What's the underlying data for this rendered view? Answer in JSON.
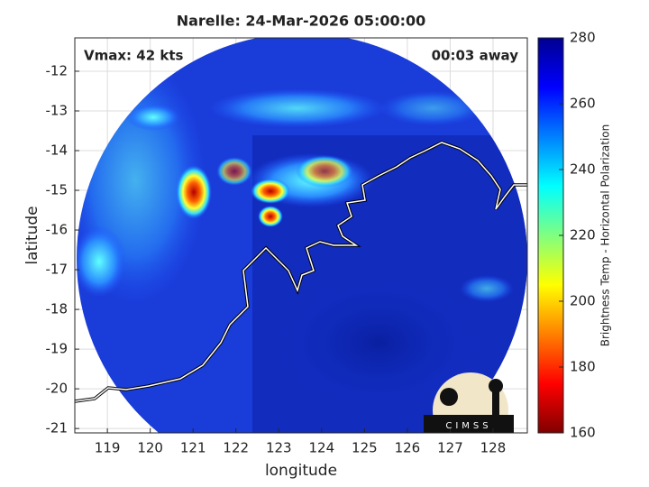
{
  "chart_data": {
    "type": "map",
    "title": "Narelle: 24-Mar-2026 05:00:00",
    "annotations": [
      "Vmax: 42 kts",
      "00:03 away"
    ],
    "x_label": "longitude",
    "y_label": "latitude",
    "xlim": [
      118.24,
      128.8
    ],
    "xticks": [
      119,
      120,
      121,
      122,
      123,
      124,
      125,
      126,
      127,
      128
    ],
    "ylim": [
      -21.11,
      -11.16
    ],
    "yticks": [
      -21,
      -20,
      -19,
      -18,
      -17,
      -16,
      -15,
      -14,
      -13,
      -12
    ],
    "grid": true,
    "colorbar": {
      "label": "Brightness Temp - Horizontal Polarization",
      "lim": [
        160,
        280
      ],
      "ticks": [
        160,
        180,
        200,
        220,
        240,
        260,
        280
      ],
      "colormap": [
        "#800000",
        "#ff0000",
        "#ff8000",
        "#ffff00",
        "#80ff80",
        "#00ffff",
        "#0080ff",
        "#0000ff",
        "#000090"
      ]
    },
    "logo": "CIMSS"
  }
}
